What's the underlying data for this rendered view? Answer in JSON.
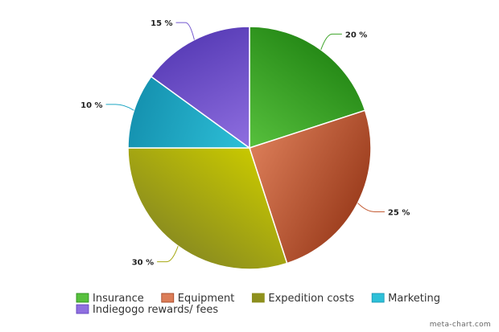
{
  "chart_data": {
    "type": "pie",
    "title": "",
    "slices": [
      {
        "label": "Insurance",
        "value": 20,
        "display": "20 %",
        "color": "#3fa52a",
        "grad_light": "#57c03d",
        "grad_dark": "#268a17"
      },
      {
        "label": "Equipment",
        "value": 25,
        "display": "25 %",
        "color": "#c45c34",
        "grad_light": "#db7d58",
        "grad_dark": "#9e3f1f"
      },
      {
        "label": "Expedition costs",
        "value": 30,
        "display": "30 %",
        "color": "#a6a810",
        "grad_light": "#c8c800",
        "grad_dark": "#8c8e1e"
      },
      {
        "label": "Marketing",
        "value": 10,
        "display": "10 %",
        "color": "#1ea6c4",
        "grad_light": "#2ec0d8",
        "grad_dark": "#1592b0"
      },
      {
        "label": "Indiegogo rewards/ fees",
        "value": 15,
        "display": "15 %",
        "color": "#7458cf",
        "grad_light": "#8f6fe0",
        "grad_dark": "#5a3eb8"
      }
    ],
    "legend_position": "bottom-left"
  },
  "credit": "meta-chart.com"
}
